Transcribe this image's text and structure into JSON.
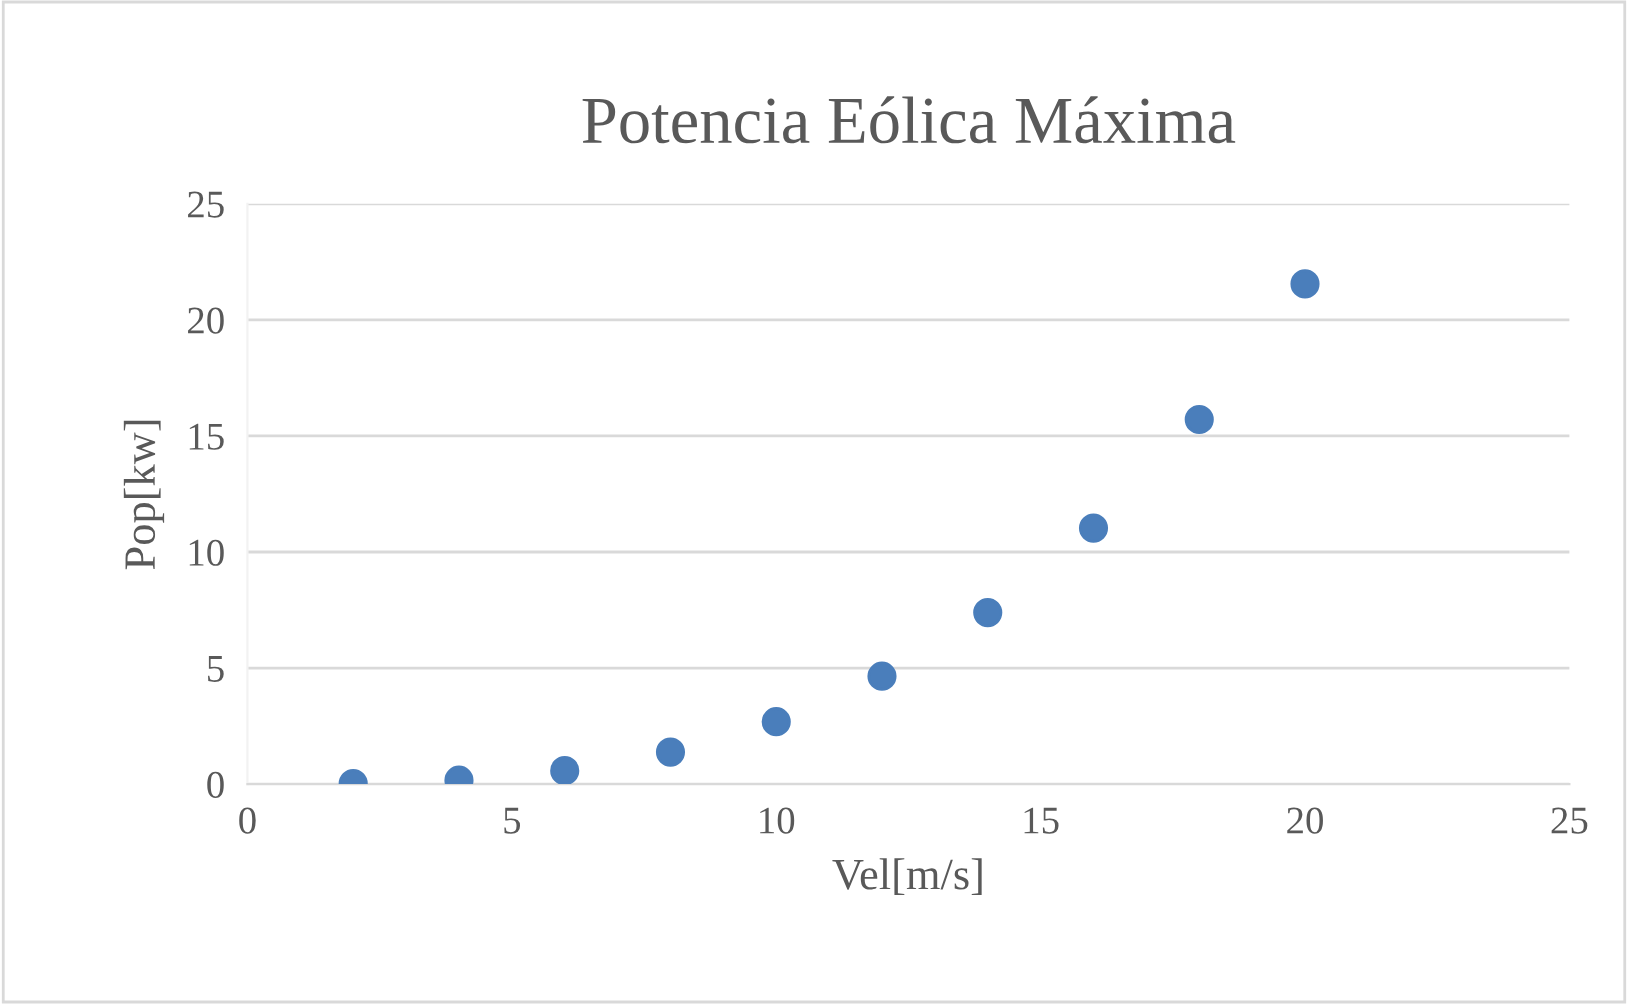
{
  "chart_data": {
    "type": "scatter",
    "title": "Potencia Eólica Máxima",
    "xlabel": "Vel[m/s]",
    "ylabel": "Pop[kw]",
    "x": [
      2,
      4,
      6,
      8,
      10,
      12,
      14,
      16,
      18,
      20
    ],
    "series": [
      {
        "color": "#4a7ebb",
        "values": [
          0.02,
          0.17,
          0.58,
          1.38,
          2.69,
          4.65,
          7.39,
          11.03,
          15.71,
          21.55
        ]
      }
    ],
    "xlim": [
      0,
      25
    ],
    "xticks": [
      0,
      5,
      10,
      15,
      20,
      25
    ],
    "ylim": [
      0,
      25
    ],
    "yticks": [
      0,
      5,
      10,
      15,
      20,
      25
    ],
    "grid": "y",
    "marker": "circle",
    "legend": false
  }
}
